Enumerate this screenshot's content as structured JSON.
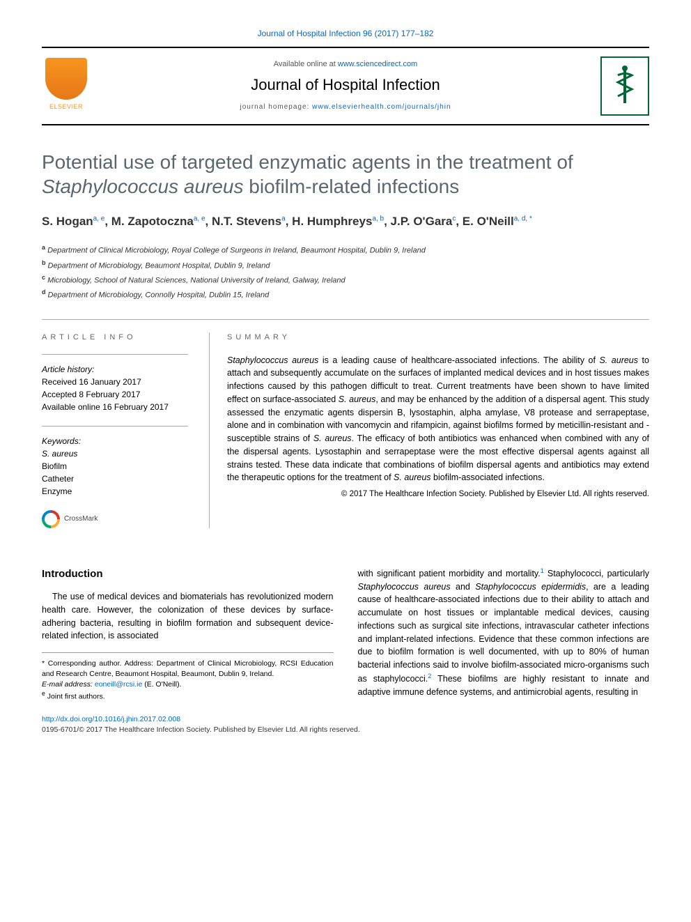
{
  "citation": {
    "journal": "Journal of Hospital Infection",
    "vol_pages": "96 (2017) 177–182",
    "color": "#0066cc"
  },
  "header": {
    "available_prefix": "Available online at ",
    "available_link": "www.sciencedirect.com",
    "journal_name": "Journal of Hospital Infection",
    "homepage_prefix": "journal homepage: ",
    "homepage_link": "www.elsevierhealth.com/journals/jhin",
    "elsevier_label": "ELSEVIER",
    "elsevier_orange": "#f7941e",
    "jhi_green": "#006633"
  },
  "title": {
    "text_before": "Potential use of targeted enzymatic agents in the treatment of ",
    "italic": "Staphylococcus aureus",
    "text_after": " biofilm-related infections",
    "color": "#5b6670",
    "fontsize": 28
  },
  "authors": [
    {
      "name": "S. Hogan",
      "sup": "a, e"
    },
    {
      "name": "M. Zapotoczna",
      "sup": "a, e"
    },
    {
      "name": "N.T. Stevens",
      "sup": "a"
    },
    {
      "name": "H. Humphreys",
      "sup": "a, b"
    },
    {
      "name": "J.P. O'Gara",
      "sup": "c"
    },
    {
      "name": "E. O'Neill",
      "sup": "a, d, *"
    }
  ],
  "affiliations": [
    {
      "key": "a",
      "text": "Department of Clinical Microbiology, Royal College of Surgeons in Ireland, Beaumont Hospital, Dublin 9, Ireland"
    },
    {
      "key": "b",
      "text": "Department of Microbiology, Beaumont Hospital, Dublin 9, Ireland"
    },
    {
      "key": "c",
      "text": "Microbiology, School of Natural Sciences, National University of Ireland, Galway, Ireland"
    },
    {
      "key": "d",
      "text": "Department of Microbiology, Connolly Hospital, Dublin 15, Ireland"
    }
  ],
  "article_info": {
    "label": "ARTICLE INFO",
    "history_label": "Article history:",
    "received": "Received 16 January 2017",
    "accepted": "Accepted 8 February 2017",
    "online": "Available online 16 February 2017",
    "keywords_label": "Keywords:",
    "keywords": [
      "S. aureus",
      "Biofilm",
      "Catheter",
      "Enzyme"
    ]
  },
  "summary": {
    "label": "SUMMARY",
    "text": "Staphylococcus aureus is a leading cause of healthcare-associated infections. The ability of S. aureus to attach and subsequently accumulate on the surfaces of implanted medical devices and in host tissues makes infections caused by this pathogen difficult to treat. Current treatments have been shown to have limited effect on surface-associated S. aureus, and may be enhanced by the addition of a dispersal agent. This study assessed the enzymatic agents dispersin B, lysostaphin, alpha amylase, V8 protease and serrapeptase, alone and in combination with vancomycin and rifampicin, against biofilms formed by meticillin-resistant and -susceptible strains of S. aureus. The efficacy of both antibiotics was enhanced when combined with any of the dispersal agents. Lysostaphin and serrapeptase were the most effective dispersal agents against all strains tested. These data indicate that combinations of biofilm dispersal agents and antibiotics may extend the therapeutic options for the treatment of S. aureus biofilm-associated infections.",
    "copyright": "© 2017 The Healthcare Infection Society. Published by Elsevier Ltd. All rights reserved."
  },
  "crossmark": {
    "label": "CrossMark"
  },
  "intro": {
    "heading": "Introduction",
    "para1": "The use of medical devices and biomaterials has revolutionized modern health care. However, the colonization of these devices by surface-adhering bacteria, resulting in biofilm formation and subsequent device-related infection, is associated",
    "para2_a": "with significant patient morbidity and mortality.",
    "para2_b": " Staphylococci, particularly ",
    "para2_em1": "Staphylococcus aureus",
    "para2_c": " and ",
    "para2_em2": "Staphylococcus epidermidis",
    "para2_d": ", are a leading cause of healthcare-associated infections due to their ability to attach and accumulate on host tissues or implantable medical devices, causing infections such as surgical site infections, intravascular catheter infections and implant-related infections. Evidence that these common infections are due to biofilm formation is well documented, with up to 80% of human bacterial infections said to involve biofilm-associated micro-organisms such as staphylococci.",
    "para2_e": " These biofilms are highly resistant to innate and adaptive immune defence systems, and antimicrobial agents, resulting in"
  },
  "footnotes": {
    "corr": "* Corresponding author. Address: Department of Clinical Microbiology, RCSI Education and Research Centre, Beaumont Hospital, Beaumont, Dublin 9, Ireland.",
    "email_label": "E-mail address: ",
    "email": "eoneill@rcsi.ie",
    "email_name": " (E. O'Neill).",
    "joint": "Joint first authors.",
    "joint_key": "e"
  },
  "footer": {
    "doi": "http://dx.doi.org/10.1016/j.jhin.2017.02.008",
    "issn_copyright": "0195-6701/© 2017 The Healthcare Infection Society. Published by Elsevier Ltd. All rights reserved."
  },
  "colors": {
    "link": "#0066cc",
    "rule": "#aaaaaa",
    "text": "#000000"
  }
}
